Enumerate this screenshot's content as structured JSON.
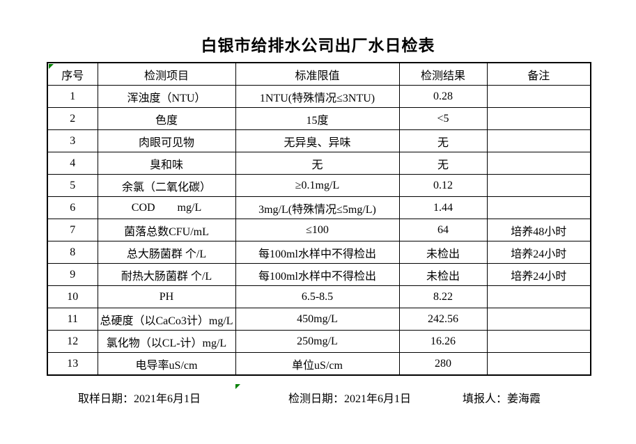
{
  "title": "白银市给排水公司出厂水日检表",
  "colors": {
    "background": "#ffffff",
    "border": "#000000",
    "marker_green": "#008000"
  },
  "table": {
    "headers": {
      "no": "序号",
      "item": "检测项目",
      "limit": "标准限值",
      "result": "检测结果",
      "remark": "备注"
    },
    "rows": [
      {
        "no": "1",
        "item": "浑浊度（NTU）",
        "limit": "1NTU(特殊情况≤3NTU)",
        "result": "0.28",
        "remark": ""
      },
      {
        "no": "2",
        "item": "色度",
        "limit": "15度",
        "result": "<5",
        "remark": ""
      },
      {
        "no": "3",
        "item": "肉眼可见物",
        "limit": "无异臭、异味",
        "result": "无",
        "remark": ""
      },
      {
        "no": "4",
        "item": "臭和味",
        "limit": "无",
        "result": "无",
        "remark": ""
      },
      {
        "no": "5",
        "item": "余氯（二氧化碳）",
        "limit": "≥0.1mg/L",
        "result": "0.12",
        "remark": ""
      },
      {
        "no": "6",
        "item": "COD        mg/L",
        "limit": "3mg/L(特殊情况≤5mg/L)",
        "result": "1.44",
        "remark": ""
      },
      {
        "no": "7",
        "item": "菌落总数CFU/mL",
        "limit": "≤100",
        "result": "64",
        "remark": "培养48小时"
      },
      {
        "no": "8",
        "item": "总大肠菌群 个/L",
        "limit": "每100ml水样中不得检出",
        "result": "未检出",
        "remark": "培养24小时"
      },
      {
        "no": "9",
        "item": "耐热大肠菌群 个/L",
        "limit": "每100ml水样中不得检出",
        "result": "未检出",
        "remark": "培养24小时"
      },
      {
        "no": "10",
        "item": "PH",
        "limit": "6.5-8.5",
        "result": "8.22",
        "remark": ""
      },
      {
        "no": "11",
        "item": "总硬度（以CaCo3计）mg/L",
        "limit": "450mg/L",
        "result": "242.56",
        "remark": ""
      },
      {
        "no": "12",
        "item": "氯化物（以CL-计）mg/L",
        "limit": "250mg/L",
        "result": "16.26",
        "remark": ""
      },
      {
        "no": "13",
        "item": "电导率uS/cm",
        "limit": "单位uS/cm",
        "result": "280",
        "remark": ""
      }
    ]
  },
  "footer": {
    "sampling_date": "取样日期：2021年6月1日",
    "test_date": "检测日期：2021年6月1日",
    "reporter": "填报人：姜海霞"
  }
}
